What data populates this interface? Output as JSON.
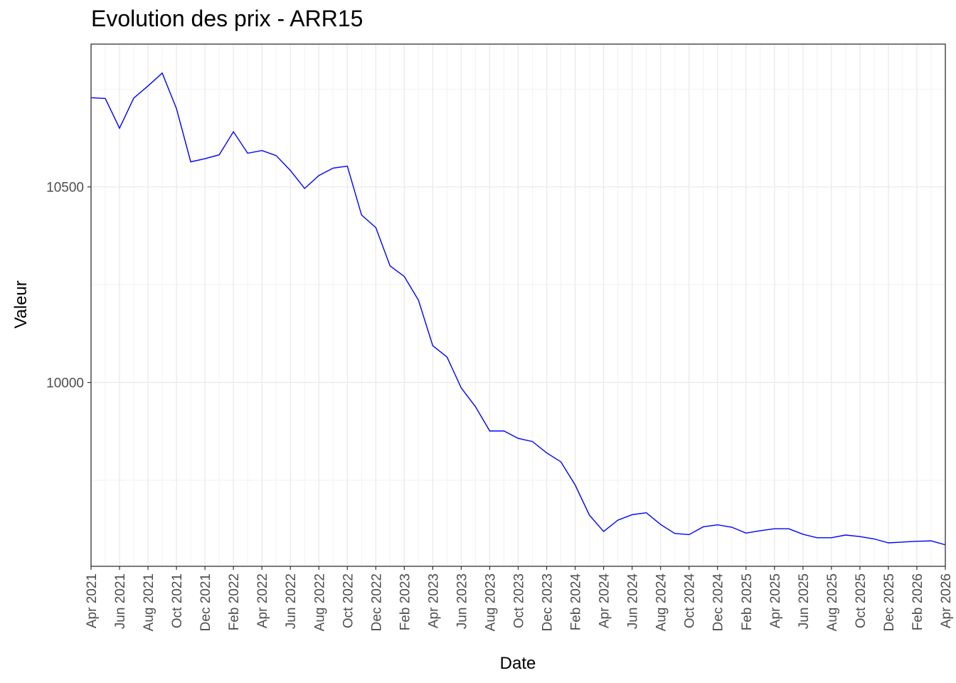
{
  "chart_data": {
    "type": "line",
    "title": "Evolution des prix - ARR15",
    "xlabel": "Date",
    "ylabel": "Valeur",
    "x_range": [
      "2021-04",
      "2026-04"
    ],
    "ylim": [
      9530,
      10865
    ],
    "y_ticks": [
      10000,
      10500
    ],
    "x_ticks": [
      "Apr 2021",
      "Jun 2021",
      "Aug 2021",
      "Oct 2021",
      "Dec 2021",
      "Feb 2022",
      "Apr 2022",
      "Jun 2022",
      "Aug 2022",
      "Oct 2022",
      "Dec 2022",
      "Feb 2023",
      "Apr 2023",
      "Jun 2023",
      "Aug 2023",
      "Oct 2023",
      "Dec 2023",
      "Feb 2024",
      "Apr 2024",
      "Jun 2024",
      "Aug 2024",
      "Oct 2024",
      "Dec 2024",
      "Feb 2025",
      "Apr 2025",
      "Jun 2025",
      "Aug 2025",
      "Oct 2025",
      "Dec 2025",
      "Feb 2026",
      "Apr 2026"
    ],
    "grid": true,
    "line_color": "#0000ff",
    "series": [
      {
        "x": [
          "2021-04",
          "2021-05",
          "2021-06",
          "2021-07",
          "2021-08",
          "2021-09",
          "2021-10",
          "2021-11",
          "2021-12",
          "2022-01",
          "2022-02",
          "2022-03",
          "2022-04",
          "2022-05",
          "2022-06",
          "2022-07",
          "2022-08",
          "2022-09",
          "2022-10",
          "2022-11",
          "2022-12",
          "2023-01",
          "2023-02",
          "2023-03",
          "2023-04",
          "2023-05",
          "2023-06",
          "2023-07",
          "2023-08",
          "2023-09",
          "2023-10",
          "2023-11",
          "2023-12",
          "2024-01",
          "2024-02",
          "2024-03",
          "2024-04",
          "2024-05",
          "2024-06",
          "2024-07",
          "2024-08",
          "2024-09",
          "2024-10",
          "2024-11",
          "2024-12",
          "2025-01",
          "2025-02",
          "2025-03",
          "2025-04",
          "2025-05",
          "2025-06",
          "2025-07",
          "2025-08",
          "2025-09",
          "2025-10",
          "2025-11",
          "2025-12",
          "2026-01",
          "2026-02",
          "2026-03",
          "2026-04"
        ],
        "y": [
          10728,
          10726,
          10650,
          10727,
          10758,
          10791,
          10700,
          10564,
          10572,
          10582,
          10641,
          10586,
          10593,
          10580,
          10542,
          10496,
          10529,
          10548,
          10553,
          10428,
          10396,
          10298,
          10271,
          10210,
          10094,
          10065,
          9986,
          9938,
          9876,
          9876,
          9857,
          9849,
          9820,
          9797,
          9738,
          9661,
          9619,
          9648,
          9662,
          9667,
          9637,
          9614,
          9611,
          9631,
          9636,
          9630,
          9615,
          9621,
          9626,
          9626,
          9612,
          9603,
          9603,
          9610,
          9606,
          9600,
          9590,
          9592,
          9594,
          9595,
          9585
        ]
      }
    ]
  }
}
